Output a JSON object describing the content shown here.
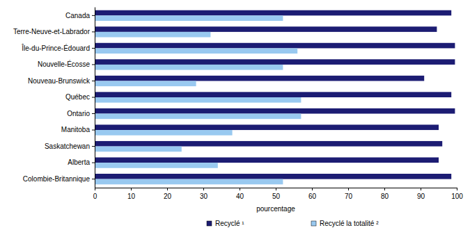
{
  "chart_data": {
    "type": "bar",
    "orientation": "horizontal",
    "categories": [
      "Canada",
      "Terre-Neuve-et-Labrador",
      "Île-du-Prince-Édouard",
      "Nouvelle-Écosse",
      "Nouveau-Brunswick",
      "Québec",
      "Ontario",
      "Manitoba",
      "Saskatchewan",
      "Alberta",
      "Colombie-Britannique"
    ],
    "series": [
      {
        "name": "Recyclé ¹",
        "color": "#1c1c73",
        "values": [
          98.5,
          94.5,
          99.5,
          99.5,
          91,
          98.5,
          99.5,
          95,
          96,
          95,
          98.5
        ]
      },
      {
        "name": "Recyclé la totalité ²",
        "color": "#99c9f0",
        "values": [
          52,
          32,
          56,
          52,
          28,
          57,
          57,
          38,
          24,
          34,
          52
        ]
      }
    ],
    "xlabel": "pourcentage",
    "xlim": [
      0,
      100
    ],
    "xticks": [
      0,
      10,
      20,
      30,
      40,
      50,
      60,
      70,
      80,
      90,
      100
    ],
    "grid": false,
    "legend": "bottom"
  }
}
